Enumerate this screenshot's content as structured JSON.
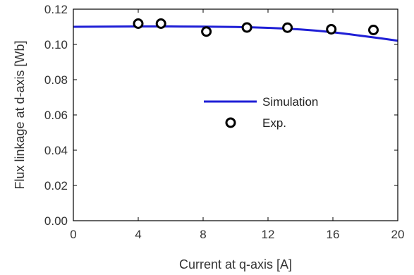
{
  "chart_data": {
    "type": "line",
    "title": "",
    "xlabel": "Current at q-axis [A]",
    "ylabel": "Flux linkage at d-axis [Wb]",
    "xlim": [
      0,
      20
    ],
    "ylim": [
      0,
      0.12
    ],
    "xticks": [
      0,
      4,
      8,
      12,
      16,
      20
    ],
    "xtick_labels": [
      "0",
      "4",
      "8",
      "12",
      "16",
      "20"
    ],
    "yticks": [
      0,
      0.02,
      0.04,
      0.06,
      0.08,
      0.1,
      0.12
    ],
    "ytick_labels": [
      "0.00",
      "0.02",
      "0.04",
      "0.06",
      "0.08",
      "0.10",
      "0.12"
    ],
    "grid": false,
    "legend_position": "center-right",
    "series": [
      {
        "name": "Simulation",
        "style": "line",
        "color": "#1f1fd6",
        "x": [
          0,
          2,
          4,
          6,
          8,
          10,
          11,
          12,
          13,
          14,
          15,
          16,
          17,
          18,
          19,
          20
        ],
        "y": [
          0.11,
          0.1101,
          0.1102,
          0.1102,
          0.1101,
          0.1099,
          0.1097,
          0.1094,
          0.109,
          0.1085,
          0.1078,
          0.1069,
          0.1058,
          0.1046,
          0.1034,
          0.1021
        ]
      },
      {
        "name": "Exp.",
        "style": "marker",
        "marker": "circle",
        "color": "#000000",
        "x": [
          4,
          5.4,
          8.2,
          10.7,
          13.2,
          15.9,
          18.5
        ],
        "y": [
          0.1118,
          0.1118,
          0.1073,
          0.1096,
          0.1095,
          0.1086,
          0.1082
        ]
      }
    ]
  }
}
